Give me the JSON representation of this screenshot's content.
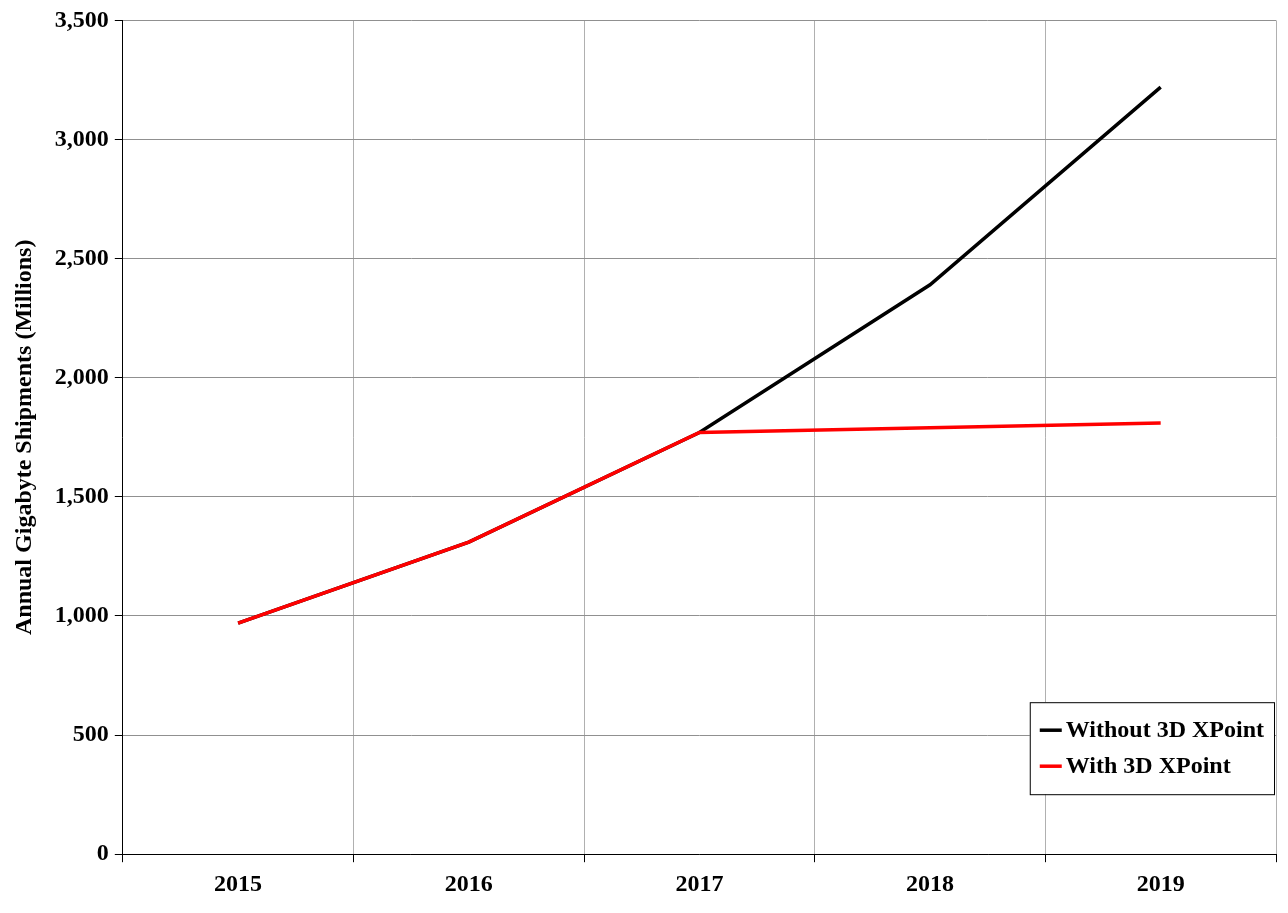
{
  "chart_data": {
    "type": "line",
    "y_label": "Annual Gigabyte Shipments (Millions)",
    "categories": [
      "2015",
      "2016",
      "2017",
      "2018",
      "2019"
    ],
    "series": [
      {
        "name": "Without 3D XPoint",
        "color": "#000000",
        "values": [
          970,
          1310,
          1770,
          2390,
          3220
        ]
      },
      {
        "name": "With 3D XPoint",
        "color": "#ff0000",
        "values": [
          970,
          1310,
          1770,
          1790,
          1810
        ]
      }
    ],
    "ylim": [
      0,
      3500
    ],
    "yticks": [
      0,
      500,
      {
        "value": 1000,
        "label": "1,000"
      },
      {
        "value": 1500,
        "label": "1,500"
      },
      {
        "value": 2000,
        "label": "2,000"
      },
      {
        "value": 2500,
        "label": "2,500"
      },
      {
        "value": 3000,
        "label": "3,000"
      },
      {
        "value": 3500,
        "label": "3,500"
      }
    ],
    "grid": true,
    "legend": "lower right"
  }
}
